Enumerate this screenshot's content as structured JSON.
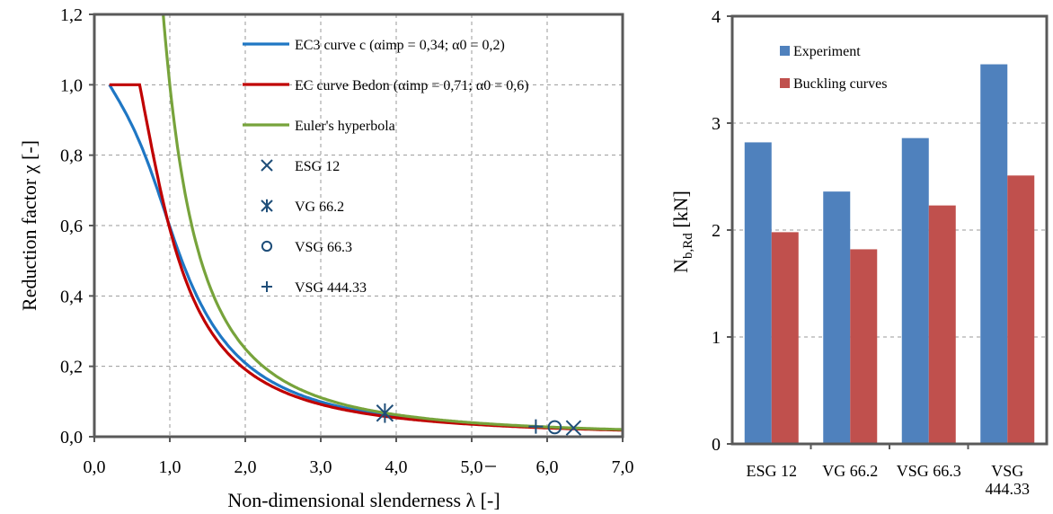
{
  "colors": {
    "ec3": "#1f77c4",
    "bedon": "#c00000",
    "euler": "#77a33b",
    "marker": "#1f4e79",
    "experiment": "#4f81bd",
    "buckling": "#c0504d"
  },
  "chart_data": [
    {
      "type": "line",
      "xlabel": "Non-dimensional slenderness λ [-]",
      "ylabel": "Reduction factor χ [-]",
      "xlim": [
        0,
        7
      ],
      "ylim": [
        0,
        1.2
      ],
      "xticks": [
        "0,0",
        "1,0",
        "2,0",
        "3,0",
        "4,0",
        "5,0",
        "6,0",
        "7,0"
      ],
      "yticks": [
        "0,0",
        "0,2",
        "0,4",
        "0,6",
        "0,8",
        "1,0",
        "1,2"
      ],
      "grid": true,
      "legend_position": "top-right",
      "series": [
        {
          "name": "EC3 curve c (αimp = 0,34; α0 = 0,2)",
          "kind": "curve",
          "alpha": 0.34,
          "lambda0": 0.2,
          "color_key": "ec3"
        },
        {
          "name": "EC curve Bedon (αimp = 0,71; α0 = 0,6)",
          "kind": "curve",
          "alpha": 0.71,
          "lambda0": 0.6,
          "color_key": "bedon"
        },
        {
          "name": "Euler's hyperbola",
          "kind": "euler",
          "color_key": "euler"
        }
      ],
      "points": [
        {
          "name": "ESG 12",
          "marker": "x",
          "x": 6.35,
          "y": 0.025
        },
        {
          "name": "VG 66.2",
          "marker": "asterisk",
          "x": 3.85,
          "y": 0.067
        },
        {
          "name": "VSG 66.3",
          "marker": "circle",
          "x": 6.1,
          "y": 0.027
        },
        {
          "name": "VSG 444.33",
          "marker": "plus",
          "x": 5.85,
          "y": 0.029
        }
      ]
    },
    {
      "type": "bar",
      "categories": [
        "ESG 12",
        "VG 66.2",
        "VSG 66.3",
        "VSG 444.33"
      ],
      "category_lines": [
        [
          "ESG 12"
        ],
        [
          "VG 66.2"
        ],
        [
          "VSG 66.3"
        ],
        [
          "VSG",
          "444.33"
        ]
      ],
      "ylabel_main": "N",
      "ylabel_sub": "b,Rd",
      "ylabel_unit": " [kN]",
      "ylim": [
        0,
        4
      ],
      "yticks": [
        "0",
        "1",
        "2",
        "3",
        "4"
      ],
      "grid": true,
      "legend_position": "top-left",
      "series": [
        {
          "name": "Experiment",
          "values": [
            2.82,
            2.36,
            2.86,
            3.55
          ],
          "color_key": "experiment"
        },
        {
          "name": "Buckling curves",
          "values": [
            1.98,
            1.82,
            2.23,
            2.51
          ],
          "color_key": "buckling"
        }
      ]
    }
  ]
}
